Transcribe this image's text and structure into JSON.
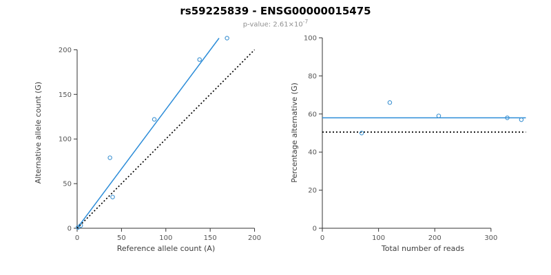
{
  "title": "rs59225839 - ENSG00000015475",
  "subtitle": {
    "label": "p-value: ",
    "mantissa": "2.61",
    "times": "×",
    "base": "10",
    "exponent": "-7"
  },
  "colors": {
    "point": "#3f93d2",
    "fit_line": "#2b8cd8",
    "reference_line": "#000000",
    "axis": "#333333"
  },
  "chart_data": [
    {
      "type": "scatter",
      "title": "",
      "xlabel": "Reference allele count (A)",
      "ylabel": "Alternative allele count (G)",
      "xlim": [
        0,
        205
      ],
      "ylim": [
        0,
        218
      ],
      "xticks": [
        0,
        50,
        100,
        150,
        200
      ],
      "yticks": [
        0,
        50,
        100,
        150,
        200
      ],
      "grid": false,
      "points": [
        [
          1,
          1
        ],
        [
          4,
          3
        ],
        [
          37,
          79
        ],
        [
          40,
          35
        ],
        [
          87,
          122
        ],
        [
          138,
          189
        ],
        [
          169,
          213
        ]
      ],
      "lines": [
        {
          "name": "fit-line",
          "style": "solid",
          "color": "#2b8cd8",
          "from": [
            0,
            0
          ],
          "to": [
            160,
            213
          ]
        },
        {
          "name": "identity-line",
          "style": "dotted",
          "color": "#000000",
          "from": [
            0,
            0
          ],
          "to": [
            200,
            200
          ]
        }
      ]
    },
    {
      "type": "scatter",
      "title": "",
      "xlabel": "Total number of reads",
      "ylabel": "Percentage alternative (G)",
      "xlim": [
        0,
        370
      ],
      "ylim": [
        0,
        100
      ],
      "xticks": [
        0,
        100,
        200,
        300
      ],
      "yticks": [
        0,
        20,
        40,
        60,
        80,
        100
      ],
      "grid": false,
      "points": [
        [
          70,
          50
        ],
        [
          120,
          66
        ],
        [
          207,
          59
        ],
        [
          329,
          58
        ],
        [
          354,
          57
        ]
      ],
      "lines": [
        {
          "name": "fit-line",
          "style": "solid",
          "color": "#2b8cd8",
          "from": [
            0,
            58
          ],
          "to": [
            362,
            58
          ]
        },
        {
          "name": "reference-line",
          "style": "dotted",
          "color": "#000000",
          "from": [
            0,
            50.5
          ],
          "to": [
            362,
            50.5
          ]
        }
      ]
    }
  ]
}
